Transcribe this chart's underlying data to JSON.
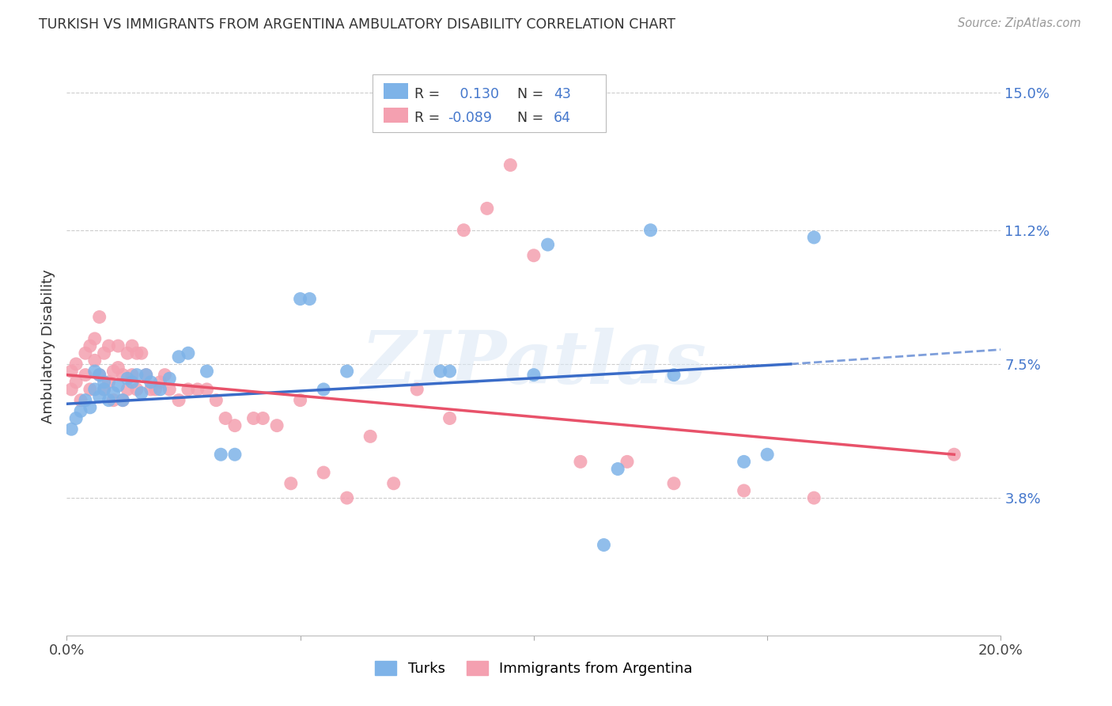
{
  "title": "TURKISH VS IMMIGRANTS FROM ARGENTINA AMBULATORY DISABILITY CORRELATION CHART",
  "source": "Source: ZipAtlas.com",
  "ylabel": "Ambulatory Disability",
  "xlim": [
    0.0,
    0.2
  ],
  "ylim": [
    0.0,
    0.16
  ],
  "yticks": [
    0.038,
    0.075,
    0.112,
    0.15
  ],
  "ytick_labels": [
    "3.8%",
    "7.5%",
    "11.2%",
    "15.0%"
  ],
  "xticks": [
    0.0,
    0.05,
    0.1,
    0.15,
    0.2
  ],
  "xtick_labels": [
    "0.0%",
    "",
    "",
    "",
    "20.0%"
  ],
  "watermark": "ZIPatlas",
  "turks_color": "#7eb3e8",
  "argentina_color": "#f4a0b0",
  "line_turks_color": "#3a6cc8",
  "line_argentina_color": "#e8526a",
  "turks_x": [
    0.001,
    0.002,
    0.003,
    0.004,
    0.005,
    0.006,
    0.006,
    0.007,
    0.007,
    0.008,
    0.008,
    0.009,
    0.01,
    0.011,
    0.012,
    0.013,
    0.014,
    0.015,
    0.016,
    0.017,
    0.018,
    0.02,
    0.022,
    0.024,
    0.026,
    0.03,
    0.033,
    0.036,
    0.05,
    0.052,
    0.055,
    0.06,
    0.08,
    0.082,
    0.1,
    0.103,
    0.115,
    0.118,
    0.125,
    0.13,
    0.145,
    0.15,
    0.16
  ],
  "turks_y": [
    0.057,
    0.06,
    0.062,
    0.065,
    0.063,
    0.068,
    0.073,
    0.066,
    0.072,
    0.068,
    0.07,
    0.065,
    0.067,
    0.069,
    0.065,
    0.071,
    0.07,
    0.072,
    0.067,
    0.072,
    0.07,
    0.068,
    0.071,
    0.077,
    0.078,
    0.073,
    0.05,
    0.05,
    0.093,
    0.093,
    0.068,
    0.073,
    0.073,
    0.073,
    0.072,
    0.108,
    0.025,
    0.046,
    0.112,
    0.072,
    0.048,
    0.05,
    0.11
  ],
  "argentina_x": [
    0.001,
    0.001,
    0.002,
    0.002,
    0.003,
    0.004,
    0.004,
    0.005,
    0.005,
    0.006,
    0.006,
    0.007,
    0.007,
    0.008,
    0.008,
    0.009,
    0.009,
    0.01,
    0.01,
    0.011,
    0.011,
    0.012,
    0.012,
    0.013,
    0.013,
    0.014,
    0.014,
    0.015,
    0.015,
    0.016,
    0.017,
    0.018,
    0.019,
    0.02,
    0.021,
    0.022,
    0.024,
    0.026,
    0.028,
    0.03,
    0.032,
    0.034,
    0.036,
    0.04,
    0.042,
    0.045,
    0.048,
    0.05,
    0.055,
    0.06,
    0.065,
    0.07,
    0.075,
    0.082,
    0.085,
    0.09,
    0.095,
    0.1,
    0.11,
    0.12,
    0.13,
    0.145,
    0.16,
    0.19
  ],
  "argentina_y": [
    0.073,
    0.068,
    0.075,
    0.07,
    0.065,
    0.078,
    0.072,
    0.08,
    0.068,
    0.082,
    0.076,
    0.088,
    0.072,
    0.078,
    0.068,
    0.08,
    0.07,
    0.073,
    0.065,
    0.08,
    0.074,
    0.072,
    0.065,
    0.078,
    0.068,
    0.08,
    0.072,
    0.078,
    0.068,
    0.078,
    0.072,
    0.068,
    0.068,
    0.07,
    0.072,
    0.068,
    0.065,
    0.068,
    0.068,
    0.068,
    0.065,
    0.06,
    0.058,
    0.06,
    0.06,
    0.058,
    0.042,
    0.065,
    0.045,
    0.038,
    0.055,
    0.042,
    0.068,
    0.06,
    0.112,
    0.118,
    0.13,
    0.105,
    0.048,
    0.048,
    0.042,
    0.04,
    0.038,
    0.05
  ],
  "turks_line_x0": 0.0,
  "turks_line_y0": 0.064,
  "turks_line_x1": 0.155,
  "turks_line_y1": 0.075,
  "turks_line_xdash_end": 0.2,
  "turks_line_ydash_end": 0.079,
  "argentina_line_x0": 0.0,
  "argentina_line_y0": 0.072,
  "argentina_line_x1": 0.19,
  "argentina_line_y1": 0.05
}
